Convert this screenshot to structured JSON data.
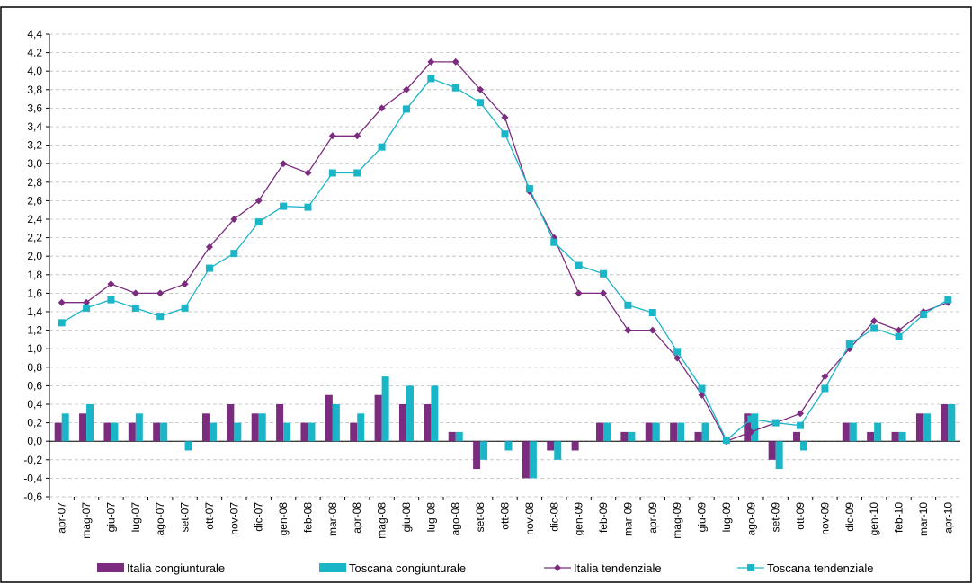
{
  "chart_data": {
    "type": "bar-line",
    "categories": [
      "apr-07",
      "mag-07",
      "giu-07",
      "lug-07",
      "ago-07",
      "set-07",
      "ott-07",
      "nov-07",
      "dic-07",
      "gen-08",
      "feb-08",
      "mar-08",
      "apr-08",
      "mag-08",
      "giu-08",
      "lug-08",
      "ago-08",
      "set-08",
      "ott-08",
      "nov-08",
      "dic-08",
      "gen-09",
      "feb-09",
      "mar-09",
      "apr-09",
      "mag-09",
      "giu-09",
      "lug-09",
      "ago-09",
      "set-09",
      "ott-09",
      "nov-09",
      "dic-09",
      "gen-10",
      "feb-10",
      "mar-10",
      "apr-10"
    ],
    "series": [
      {
        "name": "Italia congiunturale",
        "type": "bar",
        "color": "#7b2c7e",
        "values": [
          0.2,
          0.3,
          0.2,
          0.2,
          0.2,
          0,
          0.3,
          0.4,
          0.3,
          0.4,
          0.2,
          0.5,
          0.2,
          0.5,
          0.4,
          0.4,
          0.1,
          -0.3,
          0,
          -0.4,
          -0.1,
          -0.1,
          0.2,
          0.1,
          0.2,
          0.2,
          0.1,
          0,
          0.3,
          -0.2,
          0.1,
          0,
          0.2,
          0.1,
          0.1,
          0.3,
          0.4
        ]
      },
      {
        "name": "Toscana congiunturale",
        "type": "bar",
        "color": "#1bb5c8",
        "values": [
          0.3,
          0.4,
          0.2,
          0.3,
          0.2,
          -0.1,
          0.2,
          0.2,
          0.3,
          0.2,
          0.2,
          0.4,
          0.3,
          0.7,
          0.6,
          0.6,
          0.1,
          -0.2,
          -0.1,
          -0.4,
          -0.2,
          0,
          0.2,
          0.1,
          0.2,
          0.2,
          0.2,
          0,
          0.3,
          -0.3,
          -0.1,
          0,
          0.2,
          0.2,
          0.1,
          0.3,
          0.4
        ]
      },
      {
        "name": "Italia tendenziale",
        "type": "line",
        "marker": "diamond",
        "color": "#7b2c7e",
        "values": [
          1.5,
          1.5,
          1.7,
          1.6,
          1.6,
          1.7,
          2.1,
          2.4,
          2.6,
          3.0,
          2.9,
          3.3,
          3.3,
          3.6,
          3.8,
          4.1,
          4.1,
          3.8,
          3.5,
          2.7,
          2.2,
          1.6,
          1.6,
          1.2,
          1.2,
          0.9,
          0.5,
          0.0,
          0.1,
          0.2,
          0.3,
          0.7,
          1.0,
          1.3,
          1.2,
          1.4,
          1.5
        ]
      },
      {
        "name": "Toscana tendenziale",
        "type": "line",
        "marker": "square",
        "color": "#1bb5c8",
        "values": [
          1.28,
          1.44,
          1.53,
          1.44,
          1.35,
          1.44,
          1.87,
          2.03,
          2.37,
          2.54,
          2.53,
          2.9,
          2.9,
          3.18,
          3.59,
          3.92,
          3.82,
          3.66,
          3.32,
          2.73,
          2.15,
          1.9,
          1.81,
          1.47,
          1.39,
          0.97,
          0.57,
          0.01,
          0.24,
          0.2,
          0.17,
          0.57,
          1.05,
          1.22,
          1.13,
          1.37,
          1.53
        ]
      }
    ],
    "ylim": [
      -0.6,
      4.4
    ],
    "yticks": [
      {
        "value": -0.6,
        "label": "-0,6"
      },
      {
        "value": -0.4,
        "label": "-0,4"
      },
      {
        "value": -0.2,
        "label": "-0,2"
      },
      {
        "value": 0,
        "label": "0,0"
      },
      {
        "value": 0.2,
        "label": "0,2"
      },
      {
        "value": 0.4,
        "label": "0,4"
      },
      {
        "value": 0.6,
        "label": "0,6"
      },
      {
        "value": 0.8,
        "label": "0,8"
      },
      {
        "value": 1,
        "label": "1,0"
      },
      {
        "value": 1.2,
        "label": "1,2"
      },
      {
        "value": 1.4,
        "label": "1,4"
      },
      {
        "value": 1.6,
        "label": "1,6"
      },
      {
        "value": 1.8,
        "label": "1,8"
      },
      {
        "value": 2,
        "label": "2,0"
      },
      {
        "value": 2.2,
        "label": "2,2"
      },
      {
        "value": 2.4,
        "label": "2,4"
      },
      {
        "value": 2.6,
        "label": "2,6"
      },
      {
        "value": 2.8,
        "label": "2,8"
      },
      {
        "value": 3,
        "label": "3,0"
      },
      {
        "value": 3.2,
        "label": "3,2"
      },
      {
        "value": 3.4,
        "label": "3,4"
      },
      {
        "value": 3.6,
        "label": "3,6"
      },
      {
        "value": 3.8,
        "label": "3,8"
      },
      {
        "value": 4,
        "label": "4,0"
      },
      {
        "value": 4.2,
        "label": "4,2"
      },
      {
        "value": 4.4,
        "label": "4,4"
      }
    ],
    "grid": true,
    "legend": "bottom"
  }
}
